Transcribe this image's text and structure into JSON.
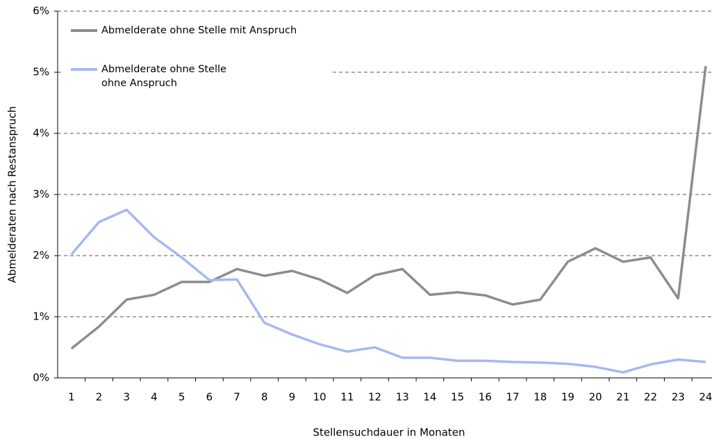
{
  "chart_data": {
    "type": "line",
    "x_label": "Stellensuchdauer in Monaten",
    "y_label": "Abmelderaten nach Restanspruch",
    "categories": [
      "1",
      "2",
      "3",
      "4",
      "5",
      "6",
      "7",
      "8",
      "9",
      "10",
      "11",
      "12",
      "13",
      "14",
      "15",
      "16",
      "17",
      "18",
      "19",
      "20",
      "21",
      "22",
      "23",
      "24"
    ],
    "series": [
      {
        "name": "Abmelderate ohne Stelle mit Anspruch",
        "color": "#8c8c8c",
        "values": [
          0.48,
          0.84,
          1.28,
          1.36,
          1.57,
          1.57,
          1.78,
          1.67,
          1.75,
          1.61,
          1.39,
          1.68,
          1.78,
          1.36,
          1.4,
          1.35,
          1.2,
          1.28,
          1.9,
          2.12,
          1.9,
          1.97,
          1.3,
          5.1
        ]
      },
      {
        "name": "Abmelderate ohne Stelle ohne Anspruch",
        "color": "#a6b8f0",
        "values": [
          2.02,
          2.55,
          2.75,
          2.3,
          1.97,
          1.6,
          1.61,
          0.9,
          0.71,
          0.55,
          0.43,
          0.5,
          0.33,
          0.33,
          0.28,
          0.28,
          0.26,
          0.25,
          0.23,
          0.18,
          0.09,
          0.22,
          0.3,
          0.26
        ]
      }
    ],
    "ylim": [
      0,
      6
    ],
    "yticks": [
      {
        "value": 0,
        "label": "0%"
      },
      {
        "value": 1,
        "label": "1%"
      },
      {
        "value": 2,
        "label": "2%"
      },
      {
        "value": 3,
        "label": "3%"
      },
      {
        "value": 4,
        "label": "4%"
      },
      {
        "value": 5,
        "label": "5%"
      },
      {
        "value": 6,
        "label": "6%"
      }
    ],
    "grid": true,
    "legend": "upper left"
  }
}
